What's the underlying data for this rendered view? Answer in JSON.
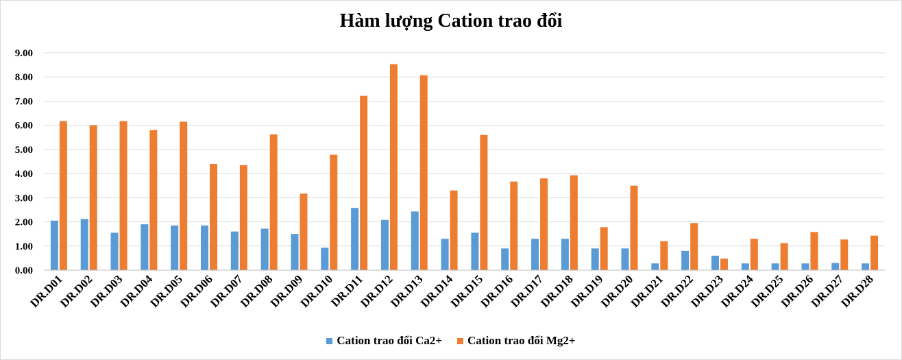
{
  "chart_data": {
    "type": "bar",
    "title": "Hàm lượng Cation trao đổi",
    "categories": [
      "DR.D01",
      "DR.D02",
      "DR.D03",
      "DR.D04",
      "DR.D05",
      "DR.D06",
      "DR.D07",
      "DR.D08",
      "DR.D09",
      "DR.D10",
      "DR.D11",
      "DR.D12",
      "DR.D13",
      "DR.D14",
      "DR.D15",
      "DR.D16",
      "DR.D17",
      "DR.D18",
      "DR.D19",
      "DR.D20",
      "DR.D21",
      "DR.D22",
      "DR.D23",
      "DR.D24",
      "DR.D25",
      "DR.D26",
      "DR.D27",
      "DR.D28"
    ],
    "series": [
      {
        "name": "Cation trao đổi Ca2+",
        "color": "#5b9bd5",
        "values": [
          2.05,
          2.12,
          1.55,
          1.9,
          1.85,
          1.85,
          1.6,
          1.72,
          1.5,
          0.93,
          2.58,
          2.08,
          2.43,
          1.3,
          1.55,
          0.9,
          1.3,
          1.3,
          0.9,
          0.9,
          0.28,
          0.8,
          0.6,
          0.28,
          0.28,
          0.28,
          0.3,
          0.28
        ]
      },
      {
        "name": "Cation trao đổi Mg2+",
        "color": "#ed7d31",
        "values": [
          6.17,
          6.0,
          6.17,
          5.8,
          6.15,
          4.4,
          4.35,
          5.62,
          3.17,
          4.78,
          7.22,
          8.53,
          8.07,
          3.3,
          5.6,
          3.67,
          3.8,
          3.93,
          1.78,
          3.5,
          1.2,
          1.95,
          0.48,
          1.3,
          1.12,
          1.58,
          1.27,
          1.43
        ]
      }
    ],
    "y_ticks": [
      "0.00",
      "1.00",
      "2.00",
      "3.00",
      "4.00",
      "5.00",
      "6.00",
      "7.00",
      "8.00",
      "9.00"
    ],
    "ylim": [
      0,
      9
    ],
    "grid": true,
    "legend_position": "bottom"
  }
}
